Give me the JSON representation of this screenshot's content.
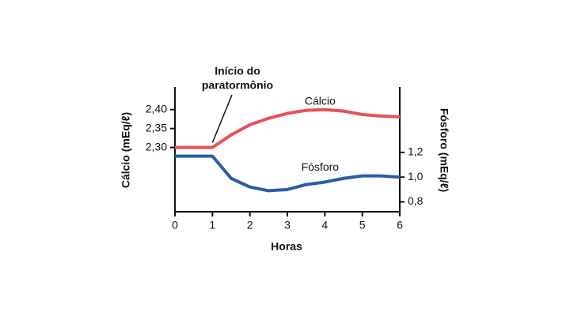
{
  "chart_data": {
    "type": "line",
    "x": [
      0,
      0.5,
      1,
      1.5,
      2,
      2.5,
      3,
      3.5,
      4,
      4.5,
      5,
      5.5,
      6
    ],
    "series": [
      {
        "name": "Cálcio",
        "color": "#e8505b",
        "axis": "y",
        "values": [
          2.3,
          2.3,
          2.3,
          2.333,
          2.36,
          2.377,
          2.39,
          2.398,
          2.4,
          2.396,
          2.387,
          2.383,
          2.381
        ]
      },
      {
        "name": "Fósforo",
        "color": "#2a5caa",
        "axis": "y2",
        "values": [
          1.17,
          1.17,
          1.17,
          0.99,
          0.92,
          0.89,
          0.9,
          0.94,
          0.96,
          0.99,
          1.01,
          1.01,
          1.0
        ]
      }
    ],
    "xlabel": "Horas",
    "ylabel": "Cálcio (mEq/ℓ)",
    "y2label": "Fósforo (mEq/ℓ)",
    "xlim": [
      0,
      6
    ],
    "xticks": [
      0,
      1,
      2,
      3,
      4,
      5,
      6
    ],
    "ylim": [
      2.13,
      2.46
    ],
    "yticks": [
      {
        "value": 2.3,
        "label": "2,30"
      },
      {
        "value": 2.35,
        "label": "2,35"
      },
      {
        "value": 2.4,
        "label": "2,40"
      }
    ],
    "y2lim": [
      0.72,
      1.73
    ],
    "y2ticks": [
      {
        "value": 0.8,
        "label": "0,8"
      },
      {
        "value": 1.0,
        "label": "1,0"
      },
      {
        "value": 1.2,
        "label": "1,2"
      }
    ],
    "annotation": {
      "text": [
        "Início do",
        "paratormônio"
      ],
      "x": 1
    }
  }
}
